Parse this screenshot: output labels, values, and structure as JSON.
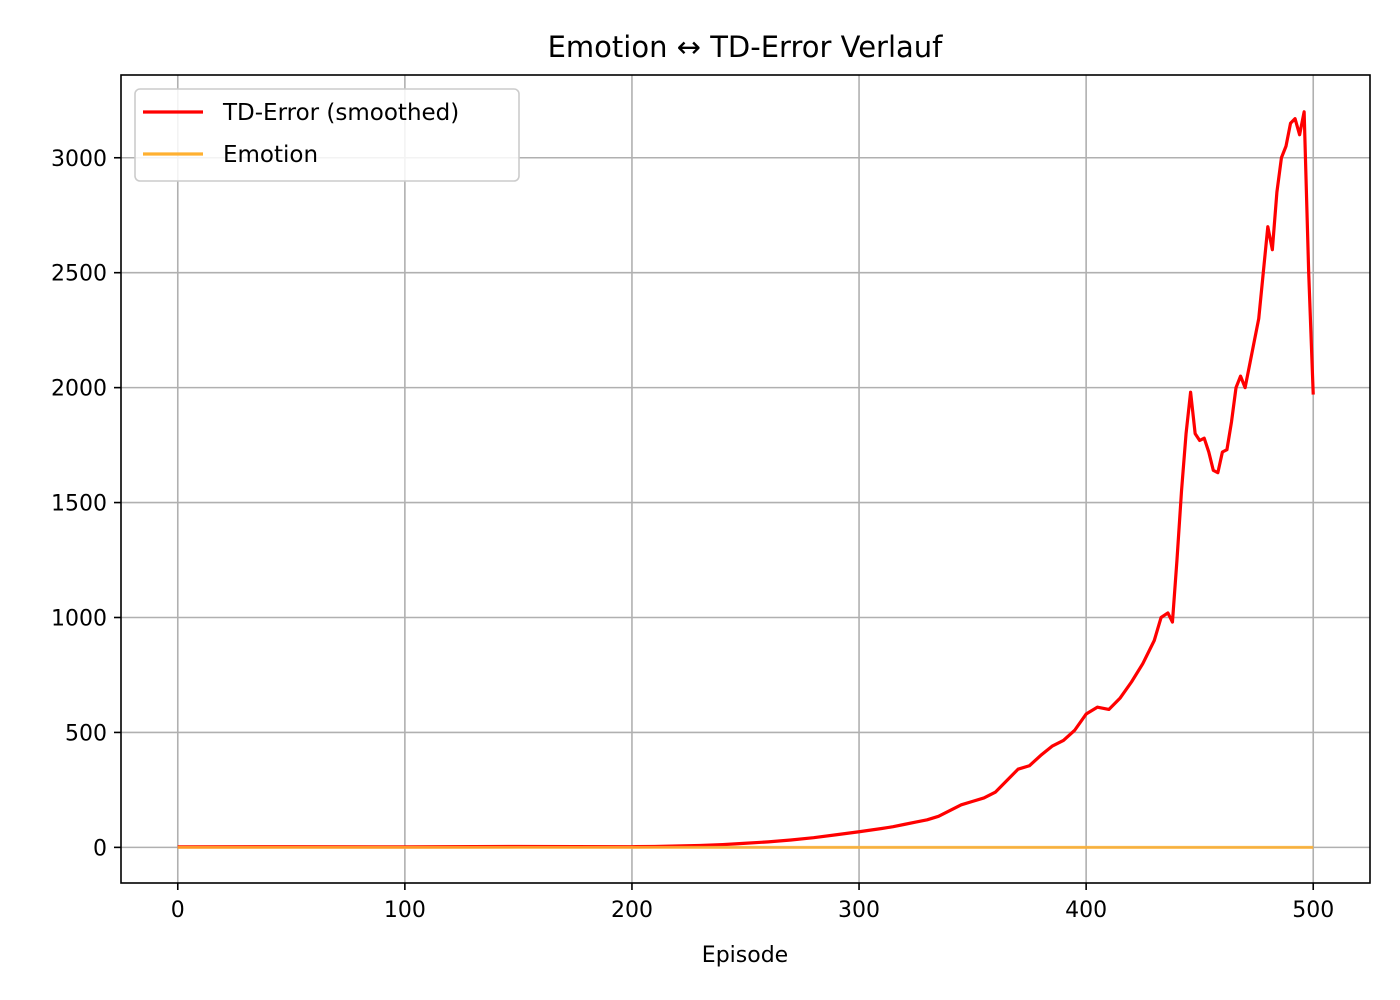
{
  "chart_data": {
    "type": "line",
    "title": "Emotion ↔ TD-Error Verlauf",
    "xlabel": "Episode",
    "ylabel": "",
    "xlim": [
      -25,
      525
    ],
    "ylim": [
      -155,
      3360
    ],
    "x_ticks": [
      0,
      100,
      200,
      300,
      400,
      500
    ],
    "y_ticks": [
      0,
      500,
      1000,
      1500,
      2000,
      2500,
      3000
    ],
    "grid": true,
    "legend_position": "top-left",
    "series": [
      {
        "name": "TD-Error (smoothed)",
        "color": "#ff0000",
        "points": [
          [
            0,
            2
          ],
          [
            50,
            3
          ],
          [
            100,
            2
          ],
          [
            150,
            4
          ],
          [
            200,
            3
          ],
          [
            210,
            4
          ],
          [
            220,
            6
          ],
          [
            230,
            8
          ],
          [
            240,
            12
          ],
          [
            250,
            18
          ],
          [
            260,
            24
          ],
          [
            270,
            32
          ],
          [
            280,
            42
          ],
          [
            290,
            55
          ],
          [
            300,
            68
          ],
          [
            305,
            75
          ],
          [
            310,
            82
          ],
          [
            315,
            90
          ],
          [
            320,
            100
          ],
          [
            325,
            110
          ],
          [
            330,
            120
          ],
          [
            335,
            135
          ],
          [
            340,
            160
          ],
          [
            345,
            185
          ],
          [
            350,
            200
          ],
          [
            355,
            215
          ],
          [
            360,
            240
          ],
          [
            365,
            290
          ],
          [
            370,
            340
          ],
          [
            375,
            355
          ],
          [
            380,
            400
          ],
          [
            385,
            440
          ],
          [
            390,
            465
          ],
          [
            395,
            510
          ],
          [
            400,
            580
          ],
          [
            405,
            610
          ],
          [
            410,
            600
          ],
          [
            415,
            650
          ],
          [
            420,
            720
          ],
          [
            425,
            800
          ],
          [
            430,
            900
          ],
          [
            433,
            1000
          ],
          [
            436,
            1020
          ],
          [
            438,
            980
          ],
          [
            440,
            1250
          ],
          [
            442,
            1550
          ],
          [
            444,
            1800
          ],
          [
            446,
            1980
          ],
          [
            448,
            1800
          ],
          [
            450,
            1770
          ],
          [
            452,
            1780
          ],
          [
            454,
            1720
          ],
          [
            456,
            1640
          ],
          [
            458,
            1630
          ],
          [
            460,
            1720
          ],
          [
            462,
            1730
          ],
          [
            464,
            1850
          ],
          [
            466,
            2000
          ],
          [
            468,
            2050
          ],
          [
            470,
            2000
          ],
          [
            472,
            2100
          ],
          [
            474,
            2200
          ],
          [
            476,
            2300
          ],
          [
            478,
            2500
          ],
          [
            480,
            2700
          ],
          [
            482,
            2600
          ],
          [
            484,
            2850
          ],
          [
            486,
            3000
          ],
          [
            488,
            3050
          ],
          [
            490,
            3150
          ],
          [
            492,
            3170
          ],
          [
            494,
            3100
          ],
          [
            496,
            3200
          ],
          [
            498,
            2500
          ],
          [
            500,
            1970
          ]
        ]
      },
      {
        "name": "Emotion",
        "color": "#ffb030",
        "points": [
          [
            0,
            0
          ],
          [
            100,
            0
          ],
          [
            200,
            0
          ],
          [
            300,
            0
          ],
          [
            400,
            0
          ],
          [
            500,
            0
          ]
        ]
      }
    ]
  }
}
